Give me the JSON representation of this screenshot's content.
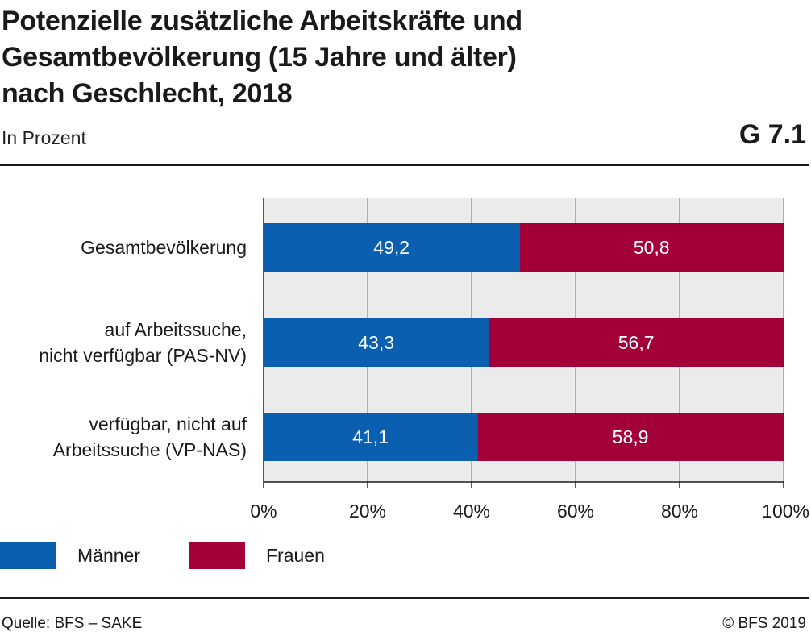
{
  "header": {
    "title_lines": [
      "Potenzielle zusätzliche Arbeitskräfte und",
      "Gesamtbevölkerung (15 Jahre und älter)",
      "nach Geschlecht, 2018"
    ],
    "subtitle": "In Prozent",
    "chart_id": "G 7.1"
  },
  "footer": {
    "source": "Quelle: BFS – SAKE",
    "copyright": "© BFS 2019"
  },
  "legend": [
    {
      "label": "Männer",
      "color": "#0a5fb0"
    },
    {
      "label": "Frauen",
      "color": "#a3003a"
    }
  ],
  "chart_data": {
    "type": "bar",
    "orientation": "horizontal",
    "stacked": true,
    "title": "Potenzielle zusätzliche Arbeitskräfte und Gesamtbevölkerung (15 Jahre und älter) nach Geschlecht, 2018",
    "subtitle": "In Prozent",
    "categories": [
      [
        "Gesamtbevölkerung"
      ],
      [
        "auf Arbeitssuche,",
        "nicht verfügbar (PAS-NV)"
      ],
      [
        "verfügbar, nicht auf",
        "Arbeitssuche (VP-NAS)"
      ]
    ],
    "series": [
      {
        "name": "Männer",
        "color": "#0a5fb0",
        "values": [
          49.2,
          43.3,
          41.1
        ],
        "labels": [
          "49,2",
          "43,3",
          "41,1"
        ]
      },
      {
        "name": "Frauen",
        "color": "#a3003a",
        "values": [
          50.8,
          56.7,
          58.9
        ],
        "labels": [
          "50,8",
          "56,7",
          "58,9"
        ]
      }
    ],
    "xlim": [
      0,
      100
    ],
    "xticks": [
      0,
      20,
      40,
      60,
      80,
      100
    ],
    "xtick_labels": [
      "0%",
      "20%",
      "40%",
      "60%",
      "80%",
      "100%"
    ],
    "grid": true,
    "plot_background": "#ebebeb",
    "legend_position": "bottom-left"
  }
}
